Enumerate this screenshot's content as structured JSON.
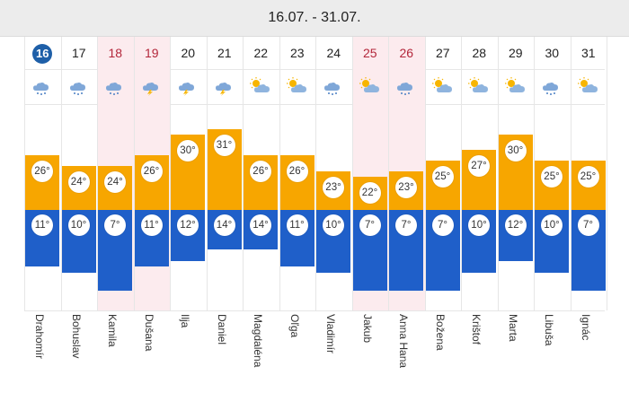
{
  "header": {
    "date_range": "16.07. - 31.07."
  },
  "days": [
    {
      "day": "16",
      "today": true,
      "weekend": false,
      "icon": "rain-cloud-icon",
      "max": 26,
      "min": 11,
      "name": "Drahomír"
    },
    {
      "day": "17",
      "today": false,
      "weekend": false,
      "icon": "rain-cloud-icon",
      "max": 24,
      "min": 10,
      "name": "Bohuslav"
    },
    {
      "day": "18",
      "today": false,
      "weekend": true,
      "icon": "rain-cloud-icon",
      "max": 24,
      "min": 7,
      "name": "Kamila"
    },
    {
      "day": "19",
      "today": false,
      "weekend": true,
      "icon": "storm-cloud-icon",
      "max": 26,
      "min": 11,
      "name": "Dušana"
    },
    {
      "day": "20",
      "today": false,
      "weekend": false,
      "icon": "storm-cloud-icon",
      "max": 30,
      "min": 12,
      "name": "Ilja"
    },
    {
      "day": "21",
      "today": false,
      "weekend": false,
      "icon": "storm-cloud-icon",
      "max": 31,
      "min": 14,
      "name": "Daniel"
    },
    {
      "day": "22",
      "today": false,
      "weekend": false,
      "icon": "partly-sunny-icon",
      "max": 26,
      "min": 14,
      "name": "Magdaléna"
    },
    {
      "day": "23",
      "today": false,
      "weekend": false,
      "icon": "partly-sunny-icon",
      "max": 26,
      "min": 11,
      "name": "Oľga"
    },
    {
      "day": "24",
      "today": false,
      "weekend": false,
      "icon": "rain-cloud-icon",
      "max": 23,
      "min": 10,
      "name": "Vladimír"
    },
    {
      "day": "25",
      "today": false,
      "weekend": true,
      "icon": "partly-sunny-icon",
      "max": 22,
      "min": 7,
      "name": "Jakub"
    },
    {
      "day": "26",
      "today": false,
      "weekend": true,
      "icon": "rain-cloud-icon",
      "max": 23,
      "min": 7,
      "name": "Anna Hana"
    },
    {
      "day": "27",
      "today": false,
      "weekend": false,
      "icon": "partly-sunny-icon",
      "max": 25,
      "min": 7,
      "name": "Božena"
    },
    {
      "day": "28",
      "today": false,
      "weekend": false,
      "icon": "partly-sunny-icon",
      "max": 27,
      "min": 10,
      "name": "Krištof"
    },
    {
      "day": "29",
      "today": false,
      "weekend": false,
      "icon": "partly-sunny-icon",
      "max": 30,
      "min": 12,
      "name": "Marta"
    },
    {
      "day": "30",
      "today": false,
      "weekend": false,
      "icon": "rain-cloud-icon",
      "max": 25,
      "min": 10,
      "name": "Libuša"
    },
    {
      "day": "31",
      "today": false,
      "weekend": false,
      "icon": "partly-sunny-icon",
      "max": 25,
      "min": 7,
      "name": "Ignác"
    }
  ],
  "colors": {
    "max_bar": "#f7a600",
    "min_bar": "#1f5fc9",
    "weekend_bg": "#fcebee",
    "today_circle": "#1e5fa8",
    "weekend_text": "#b3263a"
  }
}
